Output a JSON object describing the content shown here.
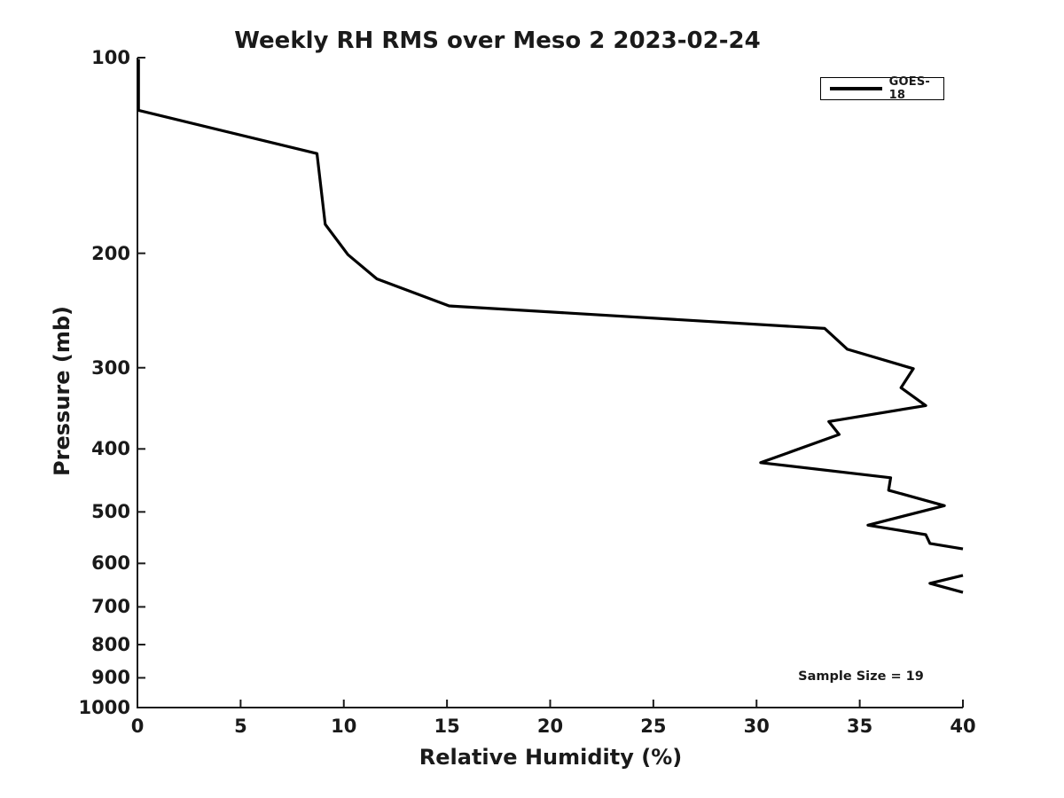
{
  "title": "Weekly RH RMS over Meso 2 2023-02-24",
  "legend": {
    "position": "top-right",
    "entries": [
      {
        "label": "GOES-18",
        "color": "#000000"
      }
    ]
  },
  "annotations": {
    "sample_size": "Sample Size = 19"
  },
  "colors": {
    "background": "#ffffff",
    "axis": "#1a1a1a",
    "text": "#1a1a1a",
    "series_line": "#000000"
  },
  "chart_data": {
    "type": "line",
    "title": "Weekly RH RMS over Meso 2 2023-02-24",
    "xlabel": "Relative Humidity (%)",
    "ylabel": "Pressure (mb)",
    "xlim": [
      0,
      40
    ],
    "xticks": [
      0,
      5,
      10,
      15,
      20,
      25,
      30,
      35,
      40
    ],
    "yscale": "log",
    "y_inverted": true,
    "ylim": [
      100,
      1000
    ],
    "yticks": [
      100,
      200,
      300,
      400,
      500,
      600,
      700,
      800,
      900,
      1000
    ],
    "grid": false,
    "legend_position": "upper right",
    "series": [
      {
        "name": "GOES-18",
        "color": "#000000",
        "line_width": 3.2,
        "clipped_at_x_max": true,
        "segments": [
          {
            "points_rh_pressure": [
              [
                0.05,
                100.5
              ],
              [
                0.05,
                120.5
              ],
              [
                8.7,
                140.5
              ],
              [
                9.1,
                180.5
              ],
              [
                10.2,
                201
              ],
              [
                11.6,
                219
              ],
              [
                15.1,
                241
              ],
              [
                33.3,
                261
              ],
              [
                34.4,
                281
              ],
              [
                37.6,
                301
              ],
              [
                37.0,
                322
              ],
              [
                38.2,
                343
              ],
              [
                33.5,
                363
              ],
              [
                34.0,
                380
              ],
              [
                30.2,
                420
              ],
              [
                36.5,
                443
              ],
              [
                36.4,
                463
              ],
              [
                39.1,
                489
              ],
              [
                35.4,
                524
              ],
              [
                38.2,
                542
              ],
              [
                38.4,
                559
              ],
              [
                40.0,
                570
              ]
            ]
          },
          {
            "points_rh_pressure": [
              [
                40.0,
                626
              ],
              [
                38.4,
                644
              ],
              [
                40.0,
                665
              ]
            ]
          }
        ]
      }
    ]
  }
}
